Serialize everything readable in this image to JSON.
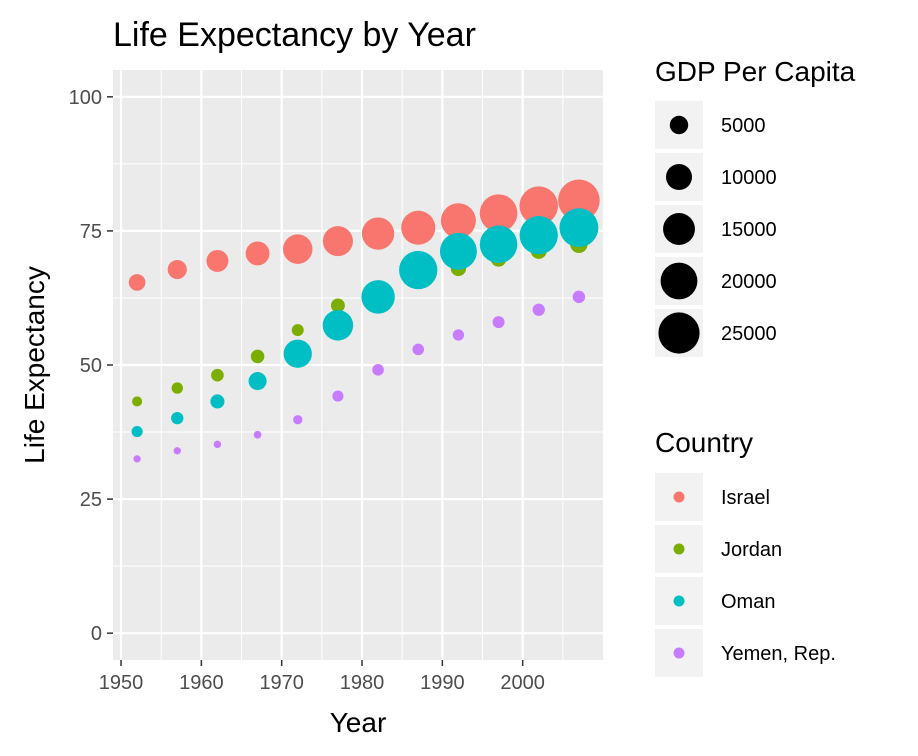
{
  "chart_data": {
    "type": "scatter",
    "title": "Life Expectancy by Year",
    "xlabel": "Year",
    "ylabel": "Life Expectancy",
    "xlim": [
      1949,
      2010
    ],
    "ylim": [
      -5,
      105
    ],
    "x_ticks": [
      1950,
      1960,
      1970,
      1980,
      1990,
      2000
    ],
    "y_ticks": [
      0,
      25,
      50,
      75,
      100
    ],
    "grid": true,
    "legend_placement": "right",
    "size_legend": {
      "title": "GDP Per Capita",
      "entries": [
        {
          "label": "5000",
          "value": 5000
        },
        {
          "label": "10000",
          "value": 10000
        },
        {
          "label": "15000",
          "value": 15000
        },
        {
          "label": "20000",
          "value": 20000
        },
        {
          "label": "25000",
          "value": 25000
        }
      ]
    },
    "color_legend": {
      "title": "Country",
      "entries": [
        {
          "label": "Israel",
          "color": "#F8766D"
        },
        {
          "label": "Jordan",
          "color": "#7CAE00"
        },
        {
          "label": "Oman",
          "color": "#00BFC4"
        },
        {
          "label": "Yemen, Rep.",
          "color": "#C77CFF"
        }
      ]
    },
    "series": [
      {
        "name": "Jordan",
        "color": "#7CAE00",
        "points": [
          {
            "x": 1952,
            "y": 43.2,
            "gdp": 1500
          },
          {
            "x": 1957,
            "y": 45.7,
            "gdp": 1900
          },
          {
            "x": 1962,
            "y": 48.1,
            "gdp": 2350
          },
          {
            "x": 1967,
            "y": 51.6,
            "gdp": 2700
          },
          {
            "x": 1972,
            "y": 56.5,
            "gdp": 2100
          },
          {
            "x": 1977,
            "y": 61.1,
            "gdp": 2850
          },
          {
            "x": 1982,
            "y": 63.7,
            "gdp": 4150
          },
          {
            "x": 1987,
            "y": 65.9,
            "gdp": 4450
          },
          {
            "x": 1992,
            "y": 68.0,
            "gdp": 3450
          },
          {
            "x": 1997,
            "y": 69.8,
            "gdp": 3650
          },
          {
            "x": 2002,
            "y": 71.3,
            "gdp": 3850
          },
          {
            "x": 2007,
            "y": 72.5,
            "gdp": 4500
          }
        ]
      },
      {
        "name": "Yemen, Rep.",
        "color": "#C77CFF",
        "points": [
          {
            "x": 1952,
            "y": 32.5,
            "gdp": 780
          },
          {
            "x": 1957,
            "y": 34.0,
            "gdp": 800
          },
          {
            "x": 1962,
            "y": 35.2,
            "gdp": 820
          },
          {
            "x": 1967,
            "y": 37.0,
            "gdp": 870
          },
          {
            "x": 1972,
            "y": 39.8,
            "gdp": 1270
          },
          {
            "x": 1977,
            "y": 44.2,
            "gdp": 1830
          },
          {
            "x": 1982,
            "y": 49.1,
            "gdp": 1980
          },
          {
            "x": 1987,
            "y": 52.9,
            "gdp": 1970
          },
          {
            "x": 1992,
            "y": 55.6,
            "gdp": 1880
          },
          {
            "x": 1997,
            "y": 58.0,
            "gdp": 2120
          },
          {
            "x": 2002,
            "y": 60.3,
            "gdp": 2230
          },
          {
            "x": 2007,
            "y": 62.7,
            "gdp": 2280
          }
        ]
      },
      {
        "name": "Israel",
        "color": "#F8766D",
        "points": [
          {
            "x": 1952,
            "y": 65.4,
            "gdp": 4090
          },
          {
            "x": 1957,
            "y": 67.8,
            "gdp": 5390
          },
          {
            "x": 1962,
            "y": 69.4,
            "gdp": 7100
          },
          {
            "x": 1967,
            "y": 70.8,
            "gdp": 8390
          },
          {
            "x": 1972,
            "y": 71.6,
            "gdp": 12790
          },
          {
            "x": 1977,
            "y": 73.1,
            "gdp": 13310
          },
          {
            "x": 1982,
            "y": 74.5,
            "gdp": 15370
          },
          {
            "x": 1987,
            "y": 75.6,
            "gdp": 17120
          },
          {
            "x": 1992,
            "y": 76.9,
            "gdp": 18050
          },
          {
            "x": 1997,
            "y": 78.3,
            "gdp": 20900
          },
          {
            "x": 2002,
            "y": 79.7,
            "gdp": 21900
          },
          {
            "x": 2007,
            "y": 80.7,
            "gdp": 25520
          }
        ]
      },
      {
        "name": "Oman",
        "color": "#00BFC4",
        "points": [
          {
            "x": 1952,
            "y": 37.6,
            "gdp": 1830
          },
          {
            "x": 1957,
            "y": 40.1,
            "gdp": 2240
          },
          {
            "x": 1962,
            "y": 43.2,
            "gdp": 2920
          },
          {
            "x": 1967,
            "y": 47.0,
            "gdp": 4810
          },
          {
            "x": 1972,
            "y": 52.1,
            "gdp": 11780
          },
          {
            "x": 1977,
            "y": 57.4,
            "gdp": 13740
          },
          {
            "x": 1982,
            "y": 62.7,
            "gdp": 16500
          },
          {
            "x": 1987,
            "y": 67.7,
            "gdp": 21600
          },
          {
            "x": 1992,
            "y": 71.2,
            "gdp": 20100
          },
          {
            "x": 1997,
            "y": 72.5,
            "gdp": 20800
          },
          {
            "x": 2002,
            "y": 74.2,
            "gdp": 21600
          },
          {
            "x": 2007,
            "y": 75.6,
            "gdp": 22300
          }
        ]
      }
    ]
  }
}
